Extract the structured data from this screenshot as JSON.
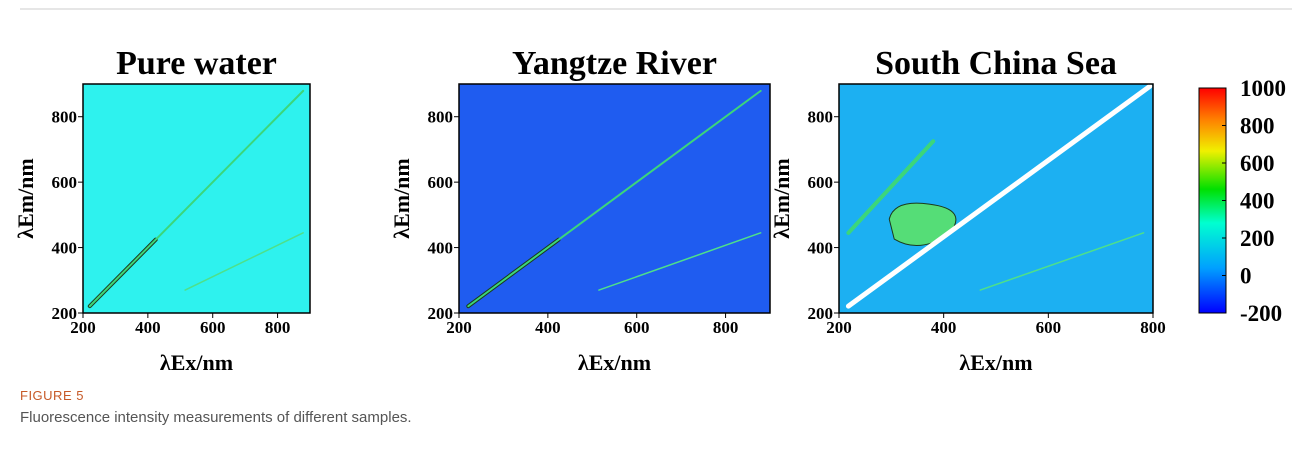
{
  "chart_data": [
    {
      "type": "heatmap",
      "title": "Pure water",
      "x_label": "λEx/nm",
      "y_label": "λEm/nm",
      "xlim": [
        200,
        900
      ],
      "ylim": [
        200,
        900
      ],
      "xticks": [
        200,
        400,
        600,
        800
      ],
      "yticks": [
        200,
        400,
        600,
        800
      ],
      "color": "#2ef2ee"
    },
    {
      "type": "heatmap",
      "title": "Yangtze River",
      "x_label": "λEx/nm",
      "y_label": "λEm/nm",
      "xlim": [
        200,
        900
      ],
      "ylim": [
        200,
        900
      ],
      "xticks": [
        200,
        400,
        600,
        800
      ],
      "yticks": [
        200,
        400,
        600,
        800
      ],
      "color": "#1f5cf0"
    },
    {
      "type": "heatmap",
      "title": "South China Sea",
      "x_label": "λEx/nm",
      "y_label": "λEm/nm",
      "xlim": [
        200,
        800
      ],
      "ylim": [
        200,
        900
      ],
      "xticks": [
        200,
        400,
        600,
        800
      ],
      "yticks": [
        200,
        400,
        600,
        800
      ],
      "color": "#1cb0f2"
    },
    {
      "type": "colorbar",
      "ylim": [
        -200,
        1000
      ],
      "yticks": [
        1000,
        800,
        600,
        400,
        200,
        0,
        -200
      ]
    }
  ],
  "figure_label": "FIGURE 5",
  "caption": "Fluorescence intensity measurements of different samples."
}
